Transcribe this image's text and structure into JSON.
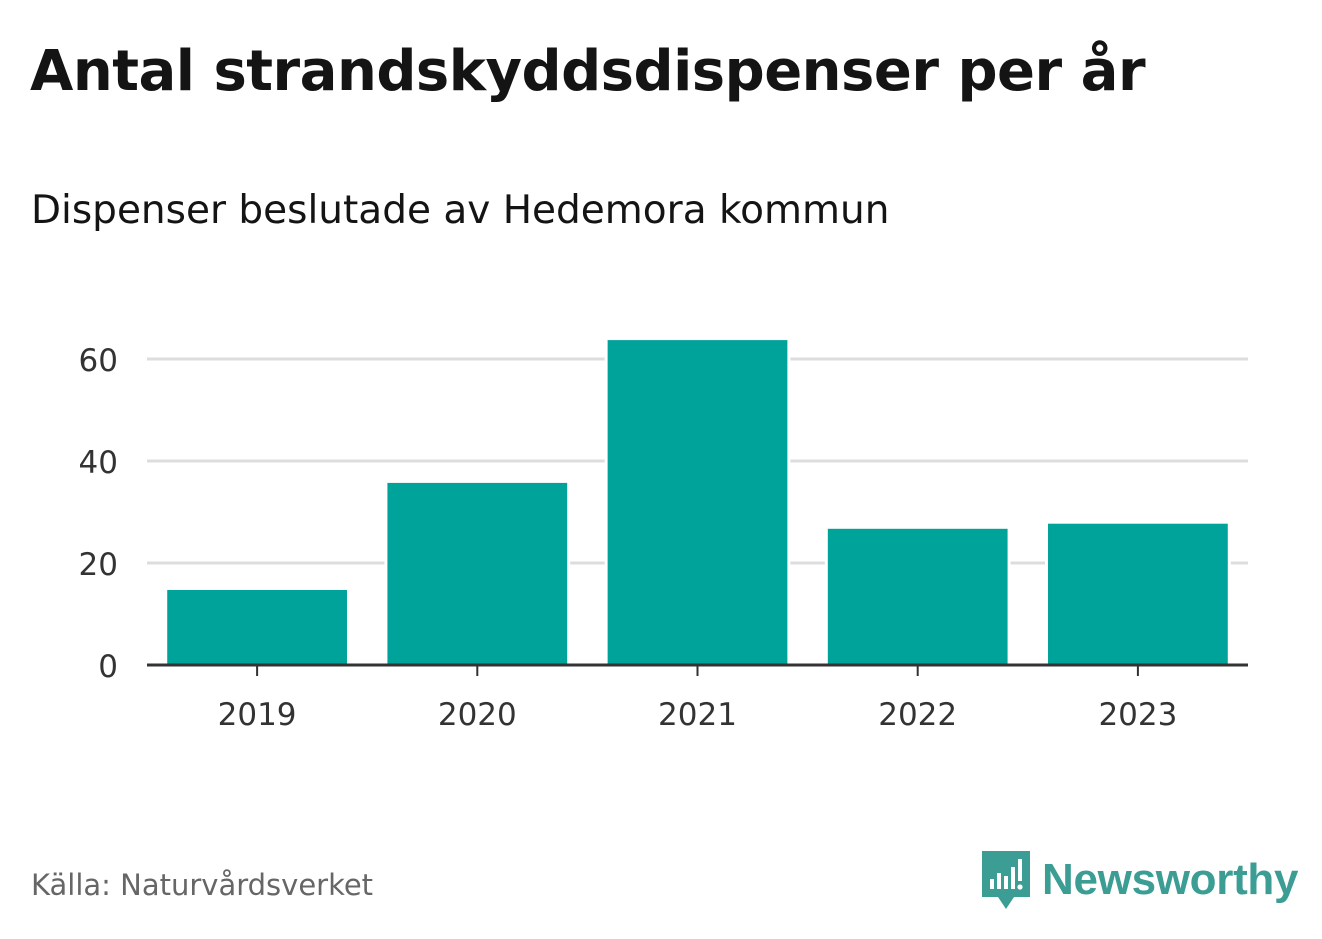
{
  "title": "Antal strandskyddsdispenser per år",
  "subtitle": "Dispenser beslutade av Hedemora kommun",
  "source": "Källa: Naturvårdsverket",
  "brand": {
    "name": "Newsworthy",
    "icon": "newsworthy-logo-icon",
    "color": "#3b9d94"
  },
  "chart_data": {
    "type": "bar",
    "categories": [
      "2019",
      "2020",
      "2021",
      "2022",
      "2023"
    ],
    "values": [
      15,
      36,
      64,
      27,
      28
    ],
    "ylim": [
      0,
      70
    ],
    "yticks": [
      0,
      20,
      40,
      60
    ],
    "ytick_labels": [
      "0",
      "20",
      "40",
      "60"
    ],
    "xlabel": "",
    "ylabel": "",
    "grid": true,
    "bar_color": "#00a39a",
    "grid_color": "#dddddd",
    "axis_color": "#333333"
  }
}
